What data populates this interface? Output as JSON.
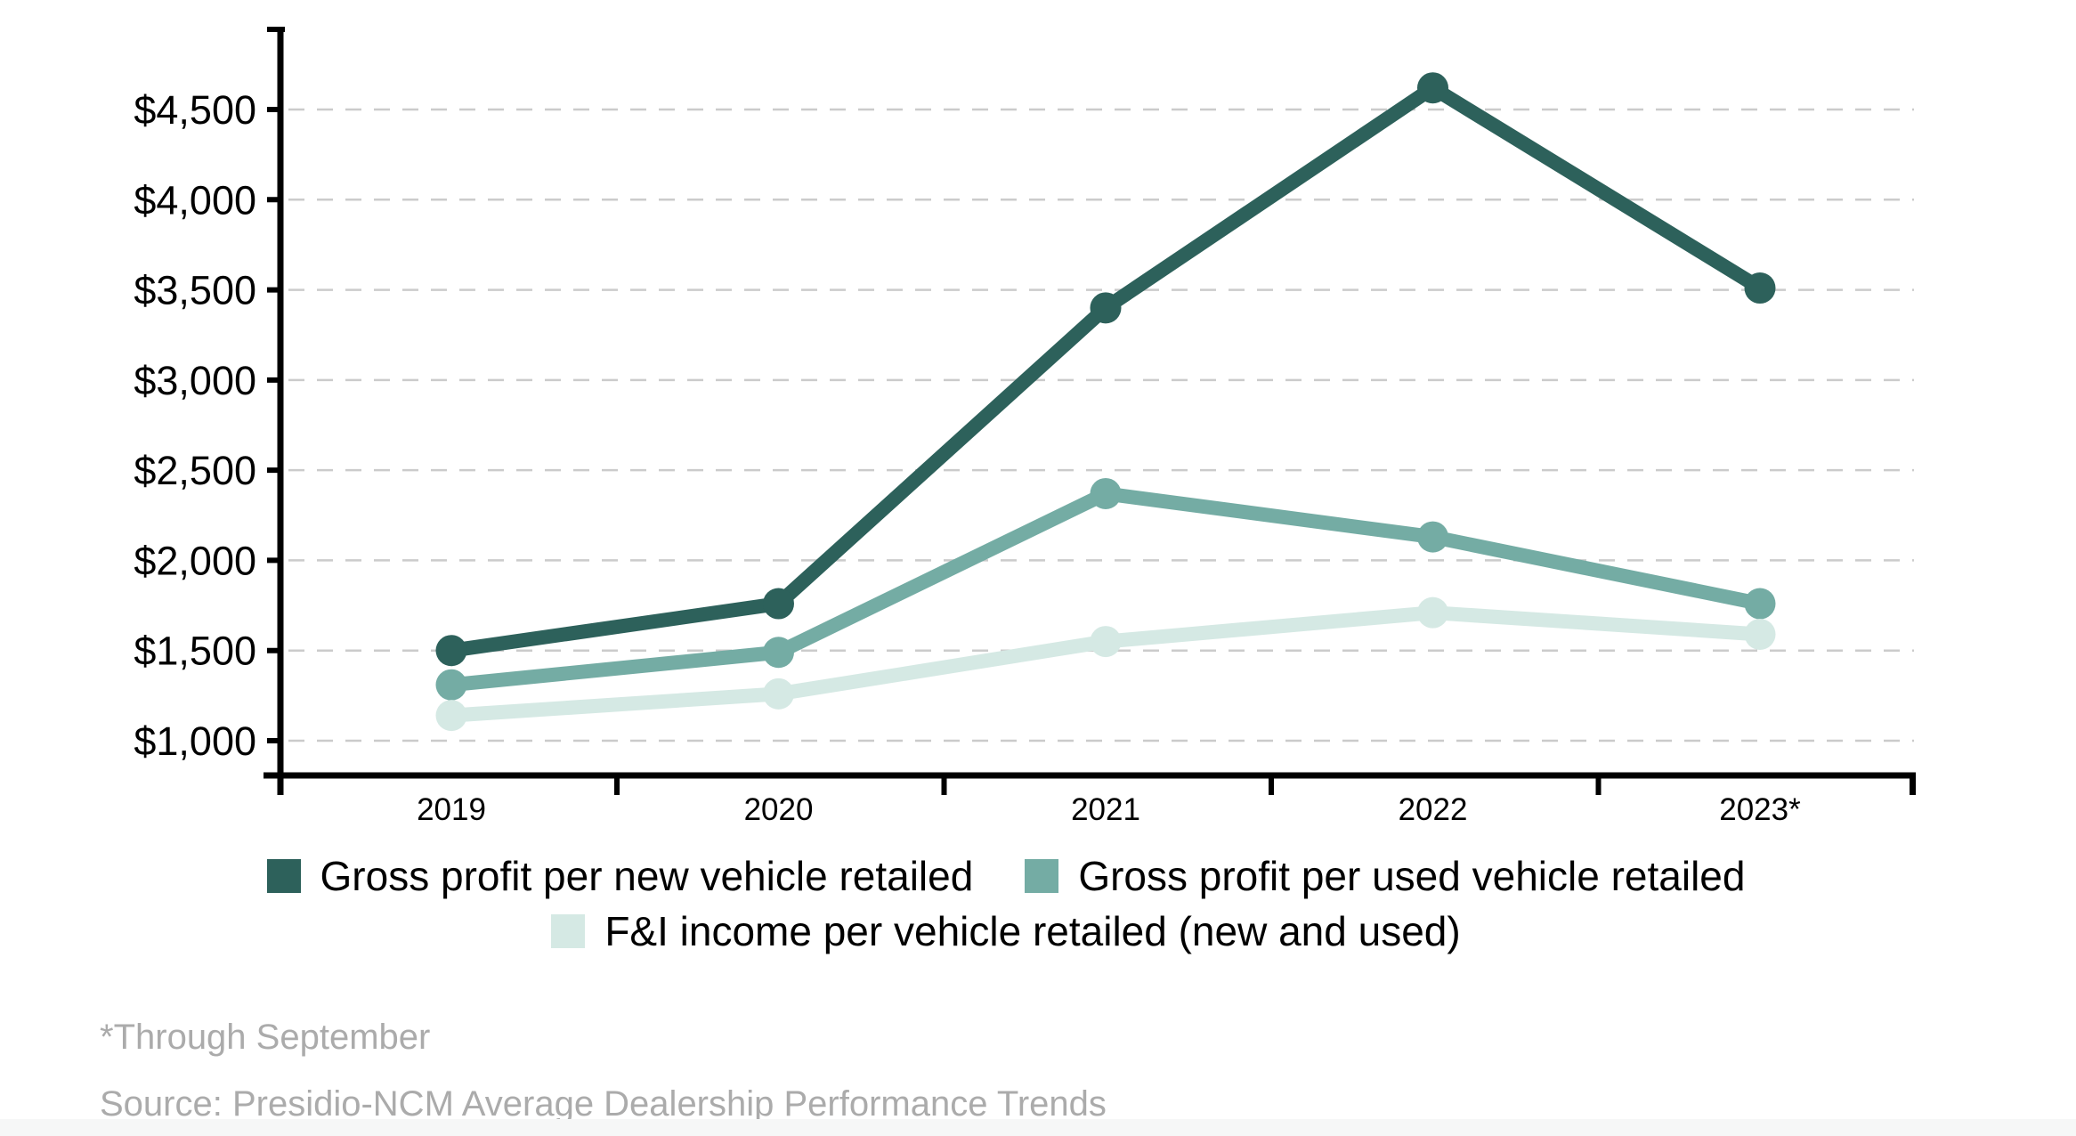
{
  "chart_data": {
    "type": "line",
    "categories": [
      "2019",
      "2020",
      "2021",
      "2022",
      "2023*"
    ],
    "series": [
      {
        "name": "Gross profit per new vehicle retailed",
        "color": "#2D615B",
        "values": [
          1500,
          1760,
          3400,
          4620,
          3510
        ]
      },
      {
        "name": "Gross profit per used vehicle retailed",
        "color": "#74ACA4",
        "values": [
          1310,
          1490,
          2370,
          2130,
          1760
        ]
      },
      {
        "name": "F&I income per vehicle retailed (new and used)",
        "color": "#D5E9E4",
        "values": [
          1140,
          1260,
          1550,
          1710,
          1590
        ]
      }
    ],
    "y_ticks": [
      {
        "label": "$4,500",
        "value": 4500
      },
      {
        "label": "$4,000",
        "value": 4000
      },
      {
        "label": "$3,500",
        "value": 3500
      },
      {
        "label": "$3,000",
        "value": 3000
      },
      {
        "label": "$2,500",
        "value": 2500
      },
      {
        "label": "$2,000",
        "value": 2000
      },
      {
        "label": "$1,500",
        "value": 1500
      },
      {
        "label": "$1,000",
        "value": 1000
      }
    ],
    "ylim": [
      1000,
      4500
    ],
    "xlabel": "",
    "ylabel": "",
    "title": "",
    "grid": "horizontal-dashed",
    "legend_position": "bottom-center"
  },
  "footnotes": {
    "note": "*Through September",
    "source": "Source: Presidio-NCM Average Dealership Performance Trends"
  },
  "colors": {
    "axis": "#000000",
    "grid": "#CBCBCB",
    "tick_label": "#000000",
    "footnote_text": "#ABABAB",
    "background": "#FFFFFF",
    "bottom_band": "#F6F7F7"
  }
}
